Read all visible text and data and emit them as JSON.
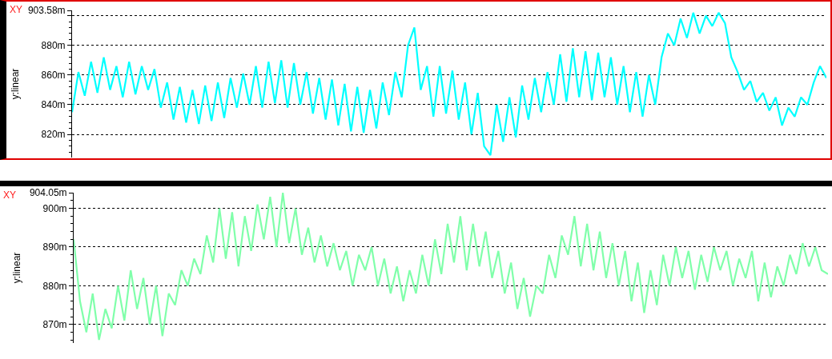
{
  "chart_data": [
    {
      "type": "line",
      "ylabel": "y:linear",
      "annotations": [
        "XY"
      ],
      "grid": "y",
      "tick_labels": "y",
      "marker": "none",
      "line_style": "solid",
      "categories": [
        null,
        null,
        null,
        null,
        null,
        null,
        null,
        null,
        null,
        null,
        null,
        null,
        null,
        null,
        null,
        null,
        null,
        null,
        null,
        null,
        null,
        null,
        null,
        null,
        null,
        null,
        null,
        null,
        null,
        null,
        null,
        null,
        null,
        null,
        null,
        null,
        null,
        null,
        null,
        null,
        null,
        null,
        null,
        null,
        null,
        null,
        null,
        null,
        null,
        null,
        null,
        null,
        null,
        null,
        null,
        null,
        null,
        null,
        null,
        null,
        null,
        null,
        null,
        null,
        null,
        null,
        null,
        null,
        null,
        null,
        null,
        null,
        null,
        null,
        null,
        null,
        null,
        null,
        null,
        null,
        null,
        null,
        null,
        null,
        null,
        null,
        null,
        null,
        null,
        null,
        null,
        null,
        null,
        null,
        null,
        null,
        null,
        null,
        null,
        null,
        null,
        null,
        null,
        null,
        null,
        null,
        null,
        null,
        null,
        null,
        null,
        null,
        null,
        null,
        null,
        null,
        null,
        null,
        null,
        null
      ],
      "series": [
        {
          "color": "#00ffff",
          "values": [
            835,
            862,
            846,
            869,
            848,
            872,
            850,
            866,
            845,
            869,
            847,
            866,
            850,
            864,
            838,
            855,
            830,
            852,
            828,
            850,
            827,
            853,
            829,
            855,
            831,
            858,
            838,
            861,
            840,
            866,
            838,
            869,
            841,
            870,
            838,
            868,
            840,
            862,
            834,
            858,
            830,
            857,
            826,
            854,
            822,
            852,
            821,
            850,
            824,
            855,
            833,
            862,
            845,
            880,
            892,
            850,
            866,
            832,
            866,
            834,
            863,
            830,
            855,
            820,
            848,
            812,
            806,
            840,
            815,
            845,
            818,
            853,
            830,
            858,
            835,
            862,
            840,
            874,
            842,
            878,
            845,
            876,
            843,
            875,
            845,
            872,
            840,
            866,
            835,
            862,
            832,
            860,
            840,
            872,
            888,
            880,
            898,
            885,
            902,
            888,
            900,
            893,
            902,
            895,
            872,
            862,
            850,
            856,
            842,
            848,
            836,
            845,
            826,
            838,
            832,
            845,
            840,
            855,
            866,
            858
          ]
        }
      ],
      "ylim": [
        804.4,
        903.58
      ],
      "yticks": [
        {
          "value": 820,
          "label": "820m"
        },
        {
          "value": 840,
          "label": "840m"
        },
        {
          "value": 860,
          "label": "860m"
        },
        {
          "value": 880,
          "label": "880m"
        },
        {
          "value": 900,
          "label": null
        },
        {
          "value": 903.58,
          "label": "903.58m"
        }
      ]
    },
    {
      "type": "line",
      "ylabel": "y:linear",
      "annotations": [
        "XY"
      ],
      "grid": "y",
      "tick_labels": "y",
      "marker": "none",
      "line_style": "solid",
      "categories": [
        null,
        null,
        null,
        null,
        null,
        null,
        null,
        null,
        null,
        null,
        null,
        null,
        null,
        null,
        null,
        null,
        null,
        null,
        null,
        null,
        null,
        null,
        null,
        null,
        null,
        null,
        null,
        null,
        null,
        null,
        null,
        null,
        null,
        null,
        null,
        null,
        null,
        null,
        null,
        null,
        null,
        null,
        null,
        null,
        null,
        null,
        null,
        null,
        null,
        null,
        null,
        null,
        null,
        null,
        null,
        null,
        null,
        null,
        null,
        null,
        null,
        null,
        null,
        null,
        null,
        null,
        null,
        null,
        null,
        null,
        null,
        null,
        null,
        null,
        null,
        null,
        null,
        null,
        null,
        null,
        null,
        null,
        null,
        null,
        null,
        null,
        null,
        null,
        null,
        null,
        null,
        null,
        null,
        null,
        null,
        null,
        null,
        null,
        null,
        null,
        null,
        null,
        null,
        null,
        null,
        null,
        null,
        null,
        null,
        null,
        null,
        null,
        null,
        null,
        null,
        null,
        null,
        null,
        null,
        null
      ],
      "series": [
        {
          "color": "#80ffaa",
          "values": [
            892,
            876,
            868,
            878,
            866,
            874,
            869,
            880,
            871,
            884,
            874,
            882,
            870,
            880,
            867,
            878,
            875,
            884,
            880,
            887,
            883,
            893,
            886,
            900,
            887,
            899,
            885,
            898,
            889,
            901,
            892,
            903,
            890,
            904,
            891,
            900,
            888,
            895,
            886,
            893,
            885,
            891,
            884,
            889,
            880,
            888,
            884,
            890,
            880,
            887,
            878,
            885,
            876,
            884,
            878,
            888,
            880,
            892,
            883,
            896,
            886,
            898,
            884,
            896,
            885,
            894,
            882,
            889,
            878,
            886,
            874,
            882,
            872,
            880,
            878,
            888,
            882,
            893,
            888,
            898,
            885,
            896,
            884,
            894,
            882,
            891,
            880,
            889,
            876,
            886,
            873,
            884,
            875,
            888,
            880,
            890,
            882,
            889,
            879,
            888,
            881,
            890,
            884,
            889,
            880,
            887,
            882,
            889,
            876,
            886,
            877,
            885,
            880,
            888,
            883,
            891,
            885,
            890,
            884,
            883
          ]
        }
      ],
      "ylim": [
        865.2,
        904.05
      ],
      "yticks": [
        {
          "value": 870,
          "label": "870m"
        },
        {
          "value": 880,
          "label": "880m"
        },
        {
          "value": 890,
          "label": "890m"
        },
        {
          "value": 900,
          "label": "900m"
        },
        {
          "value": 904.05,
          "label": "904.05m"
        }
      ]
    }
  ]
}
